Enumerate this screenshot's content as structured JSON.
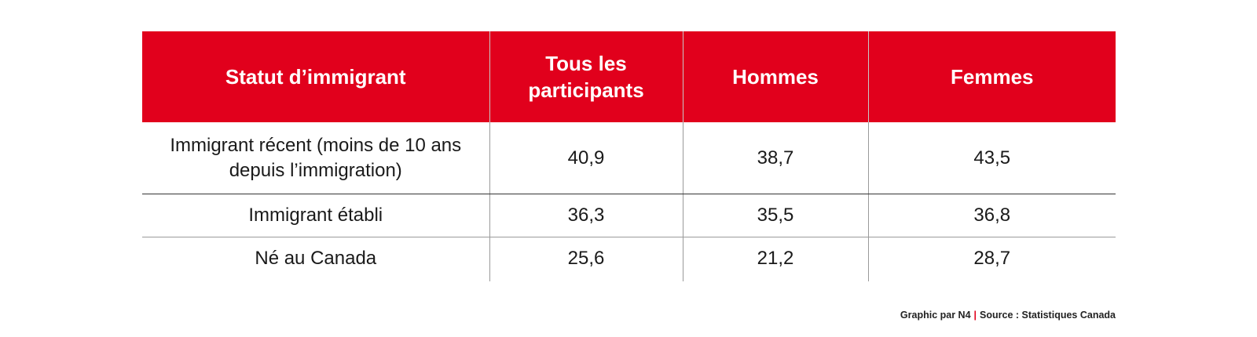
{
  "colors": {
    "header_bg": "#e1001c",
    "header_text": "#ffffff",
    "separator_accent": "#e1001c"
  },
  "chart_data": {
    "type": "table",
    "columns": [
      "Statut d’immigrant",
      "Tous les participants",
      "Hommes",
      "Femmes"
    ],
    "rows": [
      {
        "label": "Immigrant récent (moins de 10 ans depuis l’immigration)",
        "values": [
          "40,9",
          "38,7",
          "43,5"
        ]
      },
      {
        "label": "Immigrant établi",
        "values": [
          "36,3",
          "35,5",
          "36,8"
        ]
      },
      {
        "label": "Né au Canada",
        "values": [
          "25,6",
          "21,2",
          "28,7"
        ]
      }
    ]
  },
  "footer": {
    "credit": "Graphic par N4",
    "separator": "|",
    "source": "Source : Statistiques Canada"
  }
}
